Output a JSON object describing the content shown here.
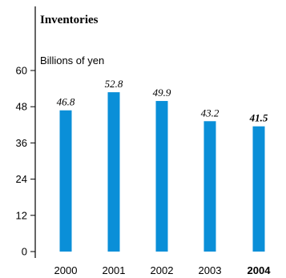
{
  "chart_data": {
    "type": "bar",
    "title": "Inventories",
    "ylabel": "Billions of yen",
    "xlabel": "",
    "categories": [
      "2000",
      "2001",
      "2002",
      "2003",
      "2004"
    ],
    "values": [
      46.8,
      52.8,
      49.9,
      43.2,
      41.5
    ],
    "value_labels": [
      "46.8",
      "52.8",
      "49.9",
      "43.2",
      "41.5"
    ],
    "highlight_category": "2004",
    "ylim": [
      0,
      60
    ],
    "yticks": [
      "0",
      "12",
      "24",
      "36",
      "48",
      "60"
    ],
    "bar_color": "#0a8fd8",
    "grid": false
  }
}
